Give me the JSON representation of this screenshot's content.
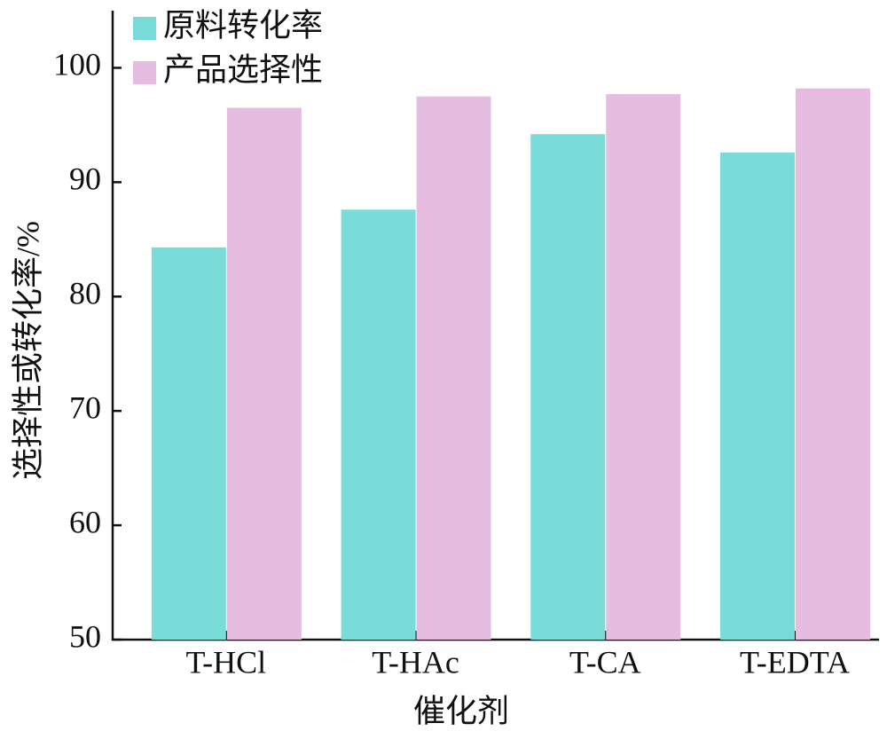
{
  "chart_data": {
    "type": "bar",
    "x_label": "催化剂",
    "y_label": "选择性或转化率/%",
    "categories": [
      "T-HCl",
      "T-HAc",
      "T-CA",
      "T-EDTA"
    ],
    "series": [
      {
        "name": "原料转化率",
        "color": "#7adcd8",
        "values": [
          84.3,
          87.6,
          94.2,
          92.6
        ]
      },
      {
        "name": "产品选择性",
        "color": "#e6bce0",
        "values": [
          96.5,
          97.5,
          97.7,
          98.2
        ]
      }
    ],
    "ylim": [
      50,
      105
    ],
    "yticks": [
      50,
      60,
      70,
      80,
      90,
      100
    ],
    "legend": "upper-left"
  }
}
